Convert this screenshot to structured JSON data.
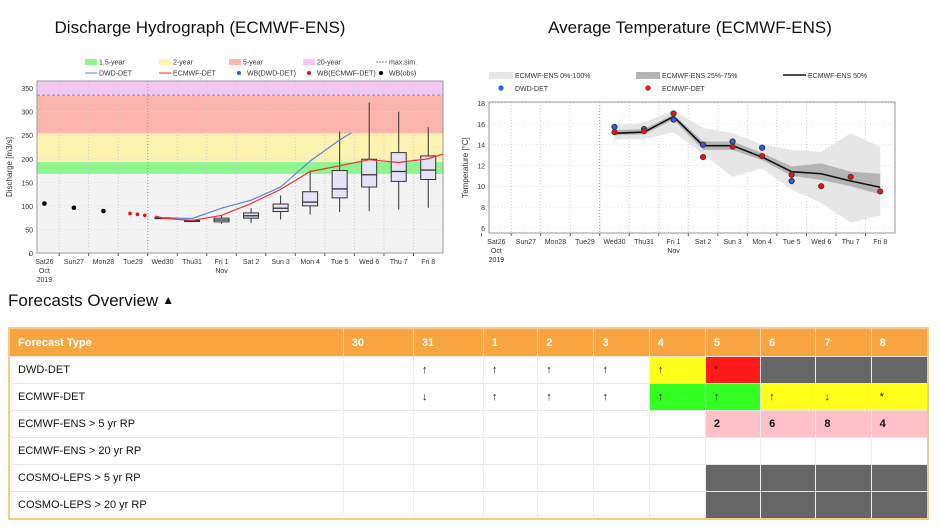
{
  "chart_data": [
    {
      "type": "box+line",
      "title": "Discharge Hydrograph (ECMWF-ENS)",
      "ylabel": "Discharge [m3/s]",
      "xlabel": "",
      "ylim": [
        0,
        365
      ],
      "yticks": [
        0,
        50,
        100,
        150,
        200,
        250,
        300,
        350
      ],
      "categories": [
        "Sat26\nOct\n2019",
        "Sun27",
        "Mon28",
        "Tue29",
        "Wed30",
        "Thu31",
        "Fri 1\nNov",
        "Sat 2",
        "Sun 3",
        "Mon 4",
        "Tue 5",
        "Wed 6",
        "Thu 7",
        "Fri 8"
      ],
      "legend": [
        "1.5-year",
        "2-year",
        "5-year",
        "20-year",
        "max.sim.",
        "DWD-DET",
        "ECMWF-DET",
        "WB(DWD-DET)",
        "WB(ECMWF-DET)",
        "WB(obs)"
      ],
      "legend_placement": "top",
      "grid": true,
      "bands": [
        {
          "name": "1.5-year",
          "from": 168,
          "to": 193,
          "color": "#8ef58e"
        },
        {
          "name": "2-year",
          "from": 193,
          "to": 254,
          "color": "#fdf3b0"
        },
        {
          "name": "5-year",
          "from": 254,
          "to": 334,
          "color": "#fbb5ad"
        },
        {
          "name": "20-year",
          "from": 334,
          "to": 365,
          "color": "#f3c6f3"
        }
      ],
      "max_sim": 335,
      "obs": [
        {
          "day": 0,
          "y": 105
        },
        {
          "day": 1,
          "y": 96
        },
        {
          "day": 2,
          "y": 89
        }
      ],
      "wb_ecmwf_det": [
        {
          "day": 2.9,
          "y": 84
        },
        {
          "day": 3.15,
          "y": 82
        },
        {
          "day": 3.4,
          "y": 80
        }
      ],
      "boxes": [
        {
          "day": 4,
          "min": 73,
          "q1": 73,
          "median": 74,
          "q3": 75,
          "max": 75
        },
        {
          "day": 5,
          "min": 66,
          "q1": 67,
          "median": 68,
          "q3": 69,
          "max": 70
        },
        {
          "day": 6,
          "min": 62,
          "q1": 66,
          "median": 70,
          "q3": 74,
          "max": 80
        },
        {
          "day": 7,
          "min": 64,
          "q1": 74,
          "median": 79,
          "q3": 85,
          "max": 95
        },
        {
          "day": 8,
          "min": 71,
          "q1": 88,
          "median": 95,
          "q3": 104,
          "max": 122
        },
        {
          "day": 9,
          "min": 82,
          "q1": 100,
          "median": 108,
          "q3": 130,
          "max": 175
        },
        {
          "day": 10,
          "min": 87,
          "q1": 117,
          "median": 136,
          "q3": 175,
          "max": 258
        },
        {
          "day": 11,
          "min": 89,
          "q1": 140,
          "median": 166,
          "q3": 199,
          "max": 319
        },
        {
          "day": 12,
          "min": 92,
          "q1": 152,
          "median": 173,
          "q3": 213,
          "max": 300
        },
        {
          "day": 13,
          "min": 96,
          "q1": 156,
          "median": 176,
          "q3": 206,
          "max": 267
        }
      ],
      "series": [
        {
          "name": "DWD-DET",
          "color": "#5b7fe8",
          "points": [
            [
              3.75,
              78
            ],
            [
              4,
              75
            ],
            [
              5,
              73
            ],
            [
              6,
              95
            ],
            [
              7,
              112
            ],
            [
              8,
              140
            ],
            [
              9,
              195
            ],
            [
              10,
              240
            ],
            [
              10.4,
              255
            ]
          ]
        },
        {
          "name": "ECMWF-DET",
          "color": "#f03030",
          "points": [
            [
              3.75,
              78
            ],
            [
              4,
              74
            ],
            [
              5,
              69
            ],
            [
              6,
              80
            ],
            [
              7,
              105
            ],
            [
              8,
              135
            ],
            [
              9,
              173
            ],
            [
              10,
              185
            ],
            [
              11,
              198
            ],
            [
              12,
              192
            ],
            [
              13,
              200
            ],
            [
              13.5,
              210
            ]
          ]
        }
      ]
    },
    {
      "type": "line+area",
      "title": "Average Temperature (ECMWF-ENS)",
      "ylabel": "Temperature [°C]",
      "xlabel": "",
      "ylim": [
        5.5,
        18.1
      ],
      "yticks": [
        6,
        8,
        10,
        12,
        14,
        16,
        18
      ],
      "categories": [
        "Sat26\nOct\n2019",
        "Sun27",
        "Mon28",
        "Tue29",
        "Wed30",
        "Thu31",
        "Fri 1\nNov",
        "Sat 2",
        "Sun 3",
        "Mon 4",
        "Tue 5",
        "Wed 6",
        "Thu 7",
        "Fri 8"
      ],
      "legend": [
        "ECMWF-ENS  0%-100%",
        "ECMWF-ENS 25%-75%",
        "ECMWF-ENS 50%",
        "DWD-DET",
        "ECMWF-DET"
      ],
      "legend_placement": "top",
      "grid": true,
      "days": [
        4,
        5,
        6,
        7,
        8,
        9,
        10,
        11,
        12,
        13
      ],
      "ens_min": [
        14.5,
        14.5,
        15.2,
        13.1,
        10.9,
        11.7,
        9.7,
        8.4,
        6.5,
        7.2
      ],
      "ens_max": [
        15.9,
        16.1,
        17.3,
        15.6,
        15.1,
        14.0,
        13.5,
        13.3,
        15.1,
        13.8
      ],
      "ens_q25": [
        14.9,
        15.0,
        16.4,
        13.5,
        13.5,
        12.5,
        11.0,
        10.6,
        10.0,
        9.2
      ],
      "ens_q75": [
        15.4,
        15.5,
        16.9,
        14.3,
        14.3,
        13.2,
        11.9,
        12.2,
        11.4,
        11.2
      ],
      "ens_median": [
        15.1,
        15.2,
        16.7,
        13.9,
        13.9,
        12.8,
        11.4,
        11.2,
        10.5,
        9.9
      ],
      "dwd_det": [
        15.7,
        15.5,
        16.4,
        14.0,
        14.3,
        13.7,
        10.5
      ],
      "ecmwf_det": [
        15.2,
        15.3,
        17.0,
        12.8,
        13.8,
        12.9,
        11.1,
        10.0,
        10.9,
        9.5
      ]
    }
  ],
  "overview": {
    "title": "Forecasts Overview",
    "caret_icon": "chevron-up-icon"
  },
  "table": {
    "headers": [
      "Forecast Type",
      "30",
      "31",
      "1",
      "2",
      "3",
      "4",
      "5",
      "6",
      "7",
      "8"
    ],
    "colors": {
      "yellow": "#ffff1a",
      "red": "#ff1a1a",
      "grey": "#666666",
      "green": "#33ff22",
      "pink": "#ffc0c8",
      "header": "#f7a540"
    },
    "rows": [
      {
        "label": "DWD-DET",
        "cells": [
          {
            "t": ""
          },
          {
            "t": "↑"
          },
          {
            "t": "↑"
          },
          {
            "t": "↑"
          },
          {
            "t": "↑"
          },
          {
            "t": "↑",
            "c": "yellow"
          },
          {
            "t": "*",
            "c": "red"
          },
          {
            "t": "",
            "c": "grey"
          },
          {
            "t": "",
            "c": "grey"
          },
          {
            "t": "",
            "c": "grey"
          }
        ]
      },
      {
        "label": "ECMWF-DET",
        "cells": [
          {
            "t": ""
          },
          {
            "t": "↓"
          },
          {
            "t": "↑"
          },
          {
            "t": "↑"
          },
          {
            "t": "↑"
          },
          {
            "t": "↑",
            "c": "green"
          },
          {
            "t": "↑",
            "c": "green"
          },
          {
            "t": "↑",
            "c": "yellow"
          },
          {
            "t": "↓",
            "c": "yellow"
          },
          {
            "t": "*",
            "c": "yellow"
          }
        ]
      },
      {
        "label": "ECMWF-ENS > 5 yr RP",
        "cells": [
          {
            "t": ""
          },
          {
            "t": ""
          },
          {
            "t": ""
          },
          {
            "t": ""
          },
          {
            "t": ""
          },
          {
            "t": ""
          },
          {
            "t": "2",
            "c": "pink"
          },
          {
            "t": "6",
            "c": "pink"
          },
          {
            "t": "8",
            "c": "pink"
          },
          {
            "t": "4",
            "c": "pink"
          }
        ]
      },
      {
        "label": "ECMWF-ENS > 20 yr RP",
        "cells": [
          {
            "t": ""
          },
          {
            "t": ""
          },
          {
            "t": ""
          },
          {
            "t": ""
          },
          {
            "t": ""
          },
          {
            "t": ""
          },
          {
            "t": ""
          },
          {
            "t": ""
          },
          {
            "t": ""
          },
          {
            "t": ""
          }
        ]
      },
      {
        "label": "COSMO-LEPS > 5 yr RP",
        "cells": [
          {
            "t": ""
          },
          {
            "t": ""
          },
          {
            "t": ""
          },
          {
            "t": ""
          },
          {
            "t": ""
          },
          {
            "t": ""
          },
          {
            "t": "",
            "c": "grey"
          },
          {
            "t": "",
            "c": "grey"
          },
          {
            "t": "",
            "c": "grey"
          },
          {
            "t": "",
            "c": "grey"
          }
        ]
      },
      {
        "label": "COSMO-LEPS > 20 yr RP",
        "cells": [
          {
            "t": ""
          },
          {
            "t": ""
          },
          {
            "t": ""
          },
          {
            "t": ""
          },
          {
            "t": ""
          },
          {
            "t": ""
          },
          {
            "t": "",
            "c": "grey"
          },
          {
            "t": "",
            "c": "grey"
          },
          {
            "t": "",
            "c": "grey"
          },
          {
            "t": "",
            "c": "grey"
          }
        ]
      }
    ]
  }
}
